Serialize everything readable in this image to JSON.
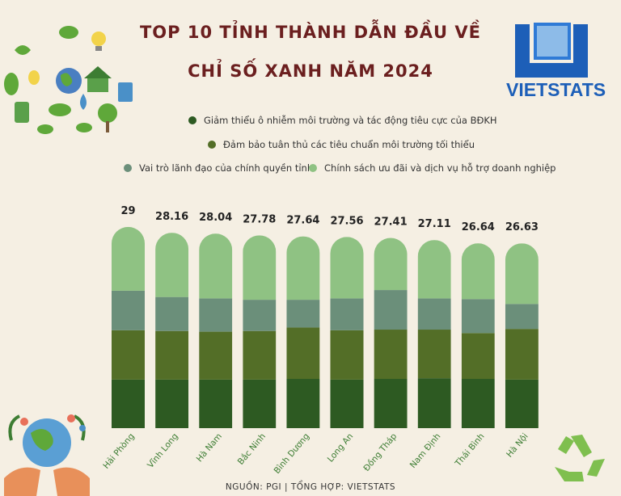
{
  "title_line1": "TOP 10 TỈNH THÀNH DẪN ĐẦU VỀ",
  "title_line2": "CHỈ SỐ XANH NĂM 2024",
  "logo": {
    "name": "VIETSTATS"
  },
  "footer": "NGUỒN: PGI | TỔNG HỢP: VIETSTATS",
  "colors": {
    "background": "#f5efe3",
    "title": "#6b1f1f",
    "s1": "#2d5a22",
    "s2": "#536e27",
    "s3": "#6b8f7a",
    "s4": "#8fc283"
  },
  "chart_data": {
    "type": "bar",
    "stacked": true,
    "categories": [
      "Hải Phòng",
      "Vĩnh Long",
      "Hà Nam",
      "Bắc Ninh",
      "Bình Dương",
      "Long An",
      "Đồng Tháp",
      "Nam Định",
      "Thái Bình",
      "Hà Nội"
    ],
    "totals": [
      "29",
      "28.16",
      "28.04",
      "27.78",
      "27.64",
      "27.56",
      "27.41",
      "27.11",
      "26.64",
      "26.63"
    ],
    "series": [
      {
        "name": "Giảm thiểu ô nhiễm môi trường và tác động tiêu cực của BĐKH",
        "values": [
          7.0,
          7.0,
          7.0,
          7.0,
          7.1,
          7.0,
          7.1,
          7.2,
          7.1,
          7.0
        ]
      },
      {
        "name": "Đảm bảo tuân thủ các tiêu chuẩn môi trường tối thiểu",
        "values": [
          7.1,
          7.0,
          6.9,
          7.0,
          7.4,
          7.1,
          7.1,
          7.0,
          6.6,
          7.3
        ]
      },
      {
        "name": "Vai trò lãnh đạo của chính quyền tỉnh",
        "values": [
          5.7,
          4.9,
          4.8,
          4.5,
          4.0,
          4.6,
          5.7,
          4.5,
          4.9,
          3.6
        ]
      },
      {
        "name": "Chính sách ưu đãi và dịch vụ hỗ trợ doanh nghiệp",
        "values": [
          9.2,
          9.26,
          9.34,
          9.28,
          9.14,
          8.86,
          7.51,
          8.41,
          8.04,
          8.73
        ]
      }
    ],
    "legend_position": "top",
    "grid": false
  }
}
